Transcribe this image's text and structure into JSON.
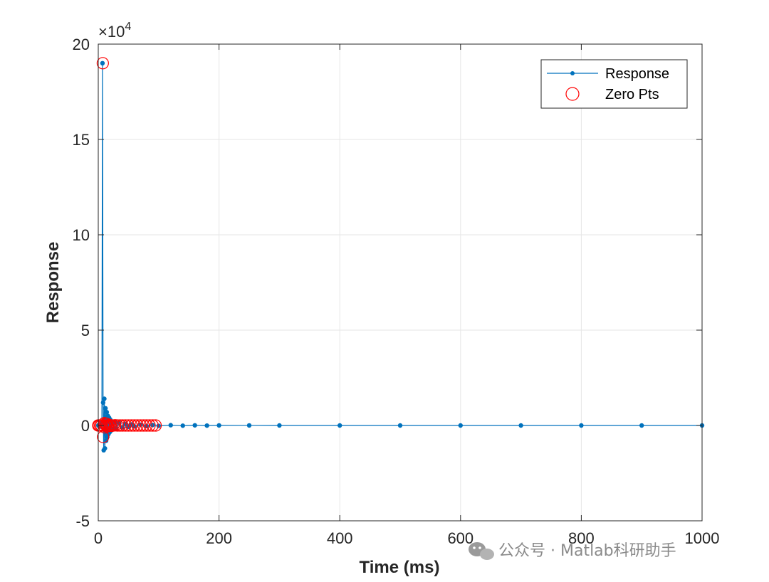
{
  "chart_data": {
    "type": "line",
    "title": "",
    "xlabel": "Time (ms)",
    "ylabel": "Response",
    "xlim": [
      0,
      1000
    ],
    "ylim": [
      -50000,
      200000
    ],
    "y_exponent": "×10",
    "y_exponent_power": "4",
    "x_ticks": [
      0,
      200,
      400,
      600,
      800,
      1000
    ],
    "x_tick_labels": [
      "0",
      "200",
      "400",
      "600",
      "800",
      "1000"
    ],
    "y_ticks": [
      -50000,
      0,
      50000,
      100000,
      150000,
      200000
    ],
    "y_tick_labels": [
      "-5",
      "0",
      "5",
      "10",
      "15",
      "20"
    ],
    "grid": true,
    "legend_placement": "top-right",
    "series": [
      {
        "name": "Response",
        "style": "line-with-dot-markers",
        "color": "#0072BD",
        "x": [
          0,
          1,
          2,
          3,
          4,
          5,
          6,
          7,
          8,
          9,
          10,
          11,
          12,
          13,
          14,
          15,
          16,
          17,
          18,
          19,
          20,
          22,
          24,
          26,
          28,
          30,
          35,
          40,
          45,
          50,
          55,
          60,
          70,
          80,
          90,
          100,
          120,
          140,
          160,
          180,
          200,
          250,
          300,
          400,
          500,
          600,
          700,
          800,
          900,
          1000
        ],
        "y": [
          0,
          200,
          -300,
          400,
          -600,
          800,
          1500,
          190000,
          12000,
          -13000,
          14000,
          -12000,
          9000,
          -8000,
          7000,
          -6000,
          5000,
          -4500,
          4000,
          -3500,
          3000,
          -2500,
          2000,
          -1800,
          1600,
          -1400,
          1200,
          -1000,
          800,
          -700,
          600,
          -500,
          400,
          -300,
          250,
          -200,
          150,
          -100,
          80,
          -60,
          40,
          20,
          10,
          0,
          0,
          0,
          0,
          0,
          0,
          0
        ]
      },
      {
        "name": "Zero Pts",
        "style": "circle-markers",
        "color": "#FF0000",
        "x": [
          0,
          1,
          3,
          5,
          7.5,
          8,
          9,
          10,
          11,
          12,
          13,
          14,
          15,
          16,
          18,
          20,
          22,
          25,
          28,
          32,
          36,
          40,
          45,
          50,
          55,
          60,
          65,
          70,
          75,
          80,
          85,
          90,
          95
        ],
        "y": [
          0,
          0,
          0,
          0,
          190000,
          -6000,
          0,
          1200,
          -1000,
          900,
          0,
          800,
          -500,
          0,
          300,
          0,
          -200,
          0,
          100,
          0,
          0,
          0,
          0,
          0,
          0,
          0,
          0,
          0,
          0,
          0,
          0,
          0,
          0
        ]
      }
    ]
  },
  "watermark": {
    "text": "公众号 · Matlab科研助手",
    "icon": "wechat-icon"
  }
}
